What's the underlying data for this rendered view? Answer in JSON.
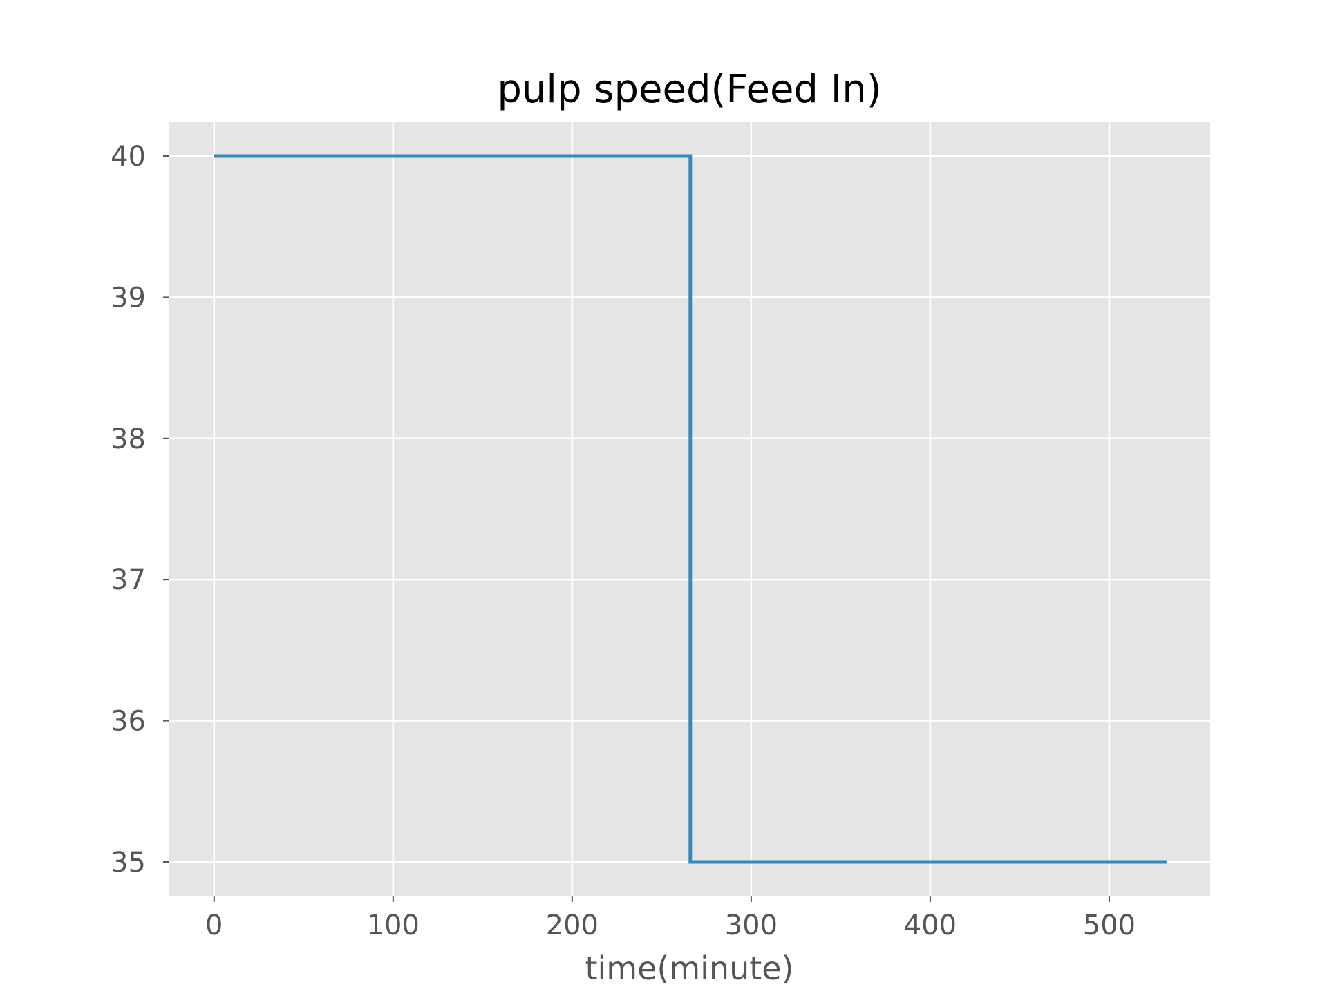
{
  "chart_data": {
    "type": "line",
    "title": "pulp speed(Feed In)",
    "xlabel": "time(minute)",
    "ylabel": "",
    "xlim": [
      -25,
      556
    ],
    "ylim": [
      34.76,
      40.24
    ],
    "xticks": [
      0,
      100,
      200,
      300,
      400,
      500
    ],
    "yticks": [
      35,
      36,
      37,
      38,
      39,
      40
    ],
    "grid": true,
    "background": "#e5e5e5",
    "grid_color": "#ffffff",
    "series": [
      {
        "color": "#348abd",
        "x": [
          0,
          266,
          266,
          532
        ],
        "y": [
          40,
          40,
          35,
          35
        ]
      }
    ]
  }
}
